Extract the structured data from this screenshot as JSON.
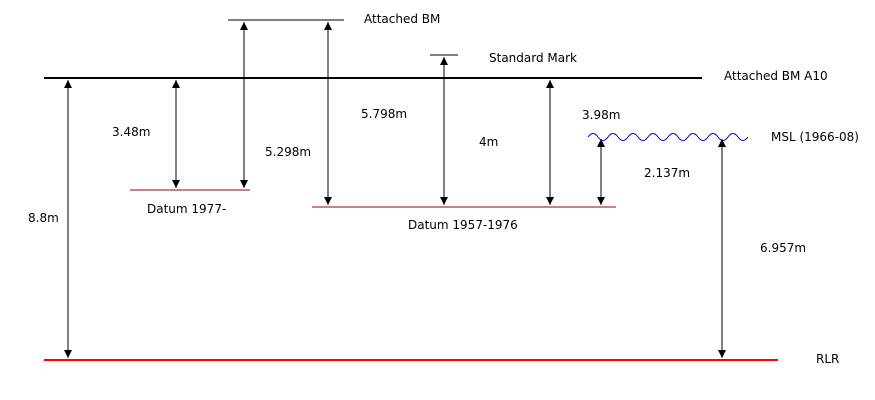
{
  "colors": {
    "black": "#000000",
    "rlr": "#ff0000",
    "datum": "#990000",
    "msl": "#0000cc"
  },
  "levels": {
    "attached_bm": "Attached BM",
    "standard_mark": "Standard Mark",
    "attached_bm_a10": "Attached BM A10",
    "msl": "MSL (1966-08)",
    "datum_1977": "Datum 1977-",
    "datum_1957": "Datum 1957-1976",
    "rlr": "RLR"
  },
  "measurements": {
    "d_8_8": "8.8m",
    "d_3_48": "3.48m",
    "d_5_298": "5.298m",
    "d_5_798": "5.798m",
    "d_4": "4m",
    "d_3_98": "3.98m",
    "d_2_137": "2.137m",
    "d_6_957": "6.957m"
  }
}
